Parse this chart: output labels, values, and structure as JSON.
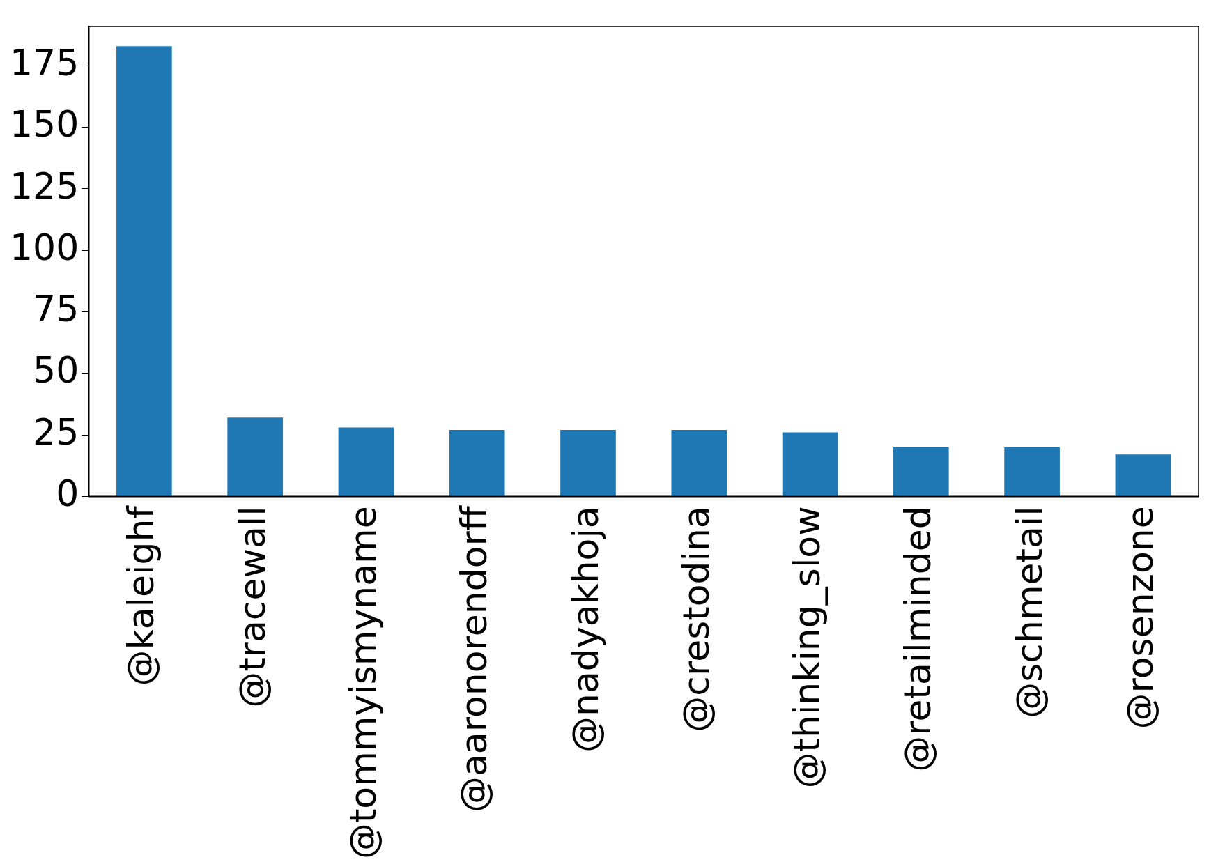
{
  "chart_data": {
    "type": "bar",
    "categories": [
      "@kaleighf",
      "@tracewall",
      "@tommyismyname",
      "@aaronorendorff",
      "@nadyakhoja",
      "@crestodina",
      "@thinking_slow",
      "@retailminded",
      "@schmetail",
      "@rosenzone"
    ],
    "values": [
      183,
      32,
      28,
      27,
      27,
      27,
      26,
      20,
      20,
      17
    ],
    "color": "#1f77b4",
    "ylim": [
      0,
      191
    ],
    "yticks": [
      0,
      25,
      50,
      75,
      100,
      125,
      150,
      175
    ],
    "grid": false,
    "legend": false
  }
}
